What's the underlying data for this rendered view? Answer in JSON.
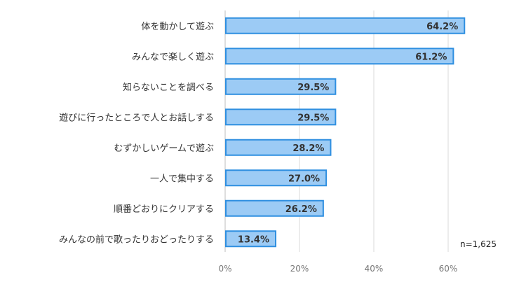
{
  "chart_data": {
    "type": "bar",
    "orientation": "horizontal",
    "categories": [
      "体を動かして遊ぶ",
      "みんなで楽しく遊ぶ",
      "知らないことを調べる",
      "遊びに行ったところで人とお話しする",
      "むずかしいゲームで遊ぶ",
      "一人で集中する",
      "順番どおりにクリアする",
      "みんなの前で歌ったりおどったりする"
    ],
    "values": [
      64.2,
      61.2,
      29.5,
      29.5,
      28.2,
      27.0,
      26.2,
      13.4
    ],
    "value_labels": [
      "64.2%",
      "61.2%",
      "29.5%",
      "29.5%",
      "28.2%",
      "27.0%",
      "26.2%",
      "13.4%"
    ],
    "x_ticks": [
      0,
      20,
      40,
      60
    ],
    "x_tick_labels": [
      "0%",
      "20%",
      "40%",
      "60%"
    ],
    "xlim": [
      0,
      80
    ],
    "grid": true,
    "bar_fill": "#9ccbf5",
    "bar_stroke": "#2f8fe0",
    "sample_note": "n=1,625"
  }
}
